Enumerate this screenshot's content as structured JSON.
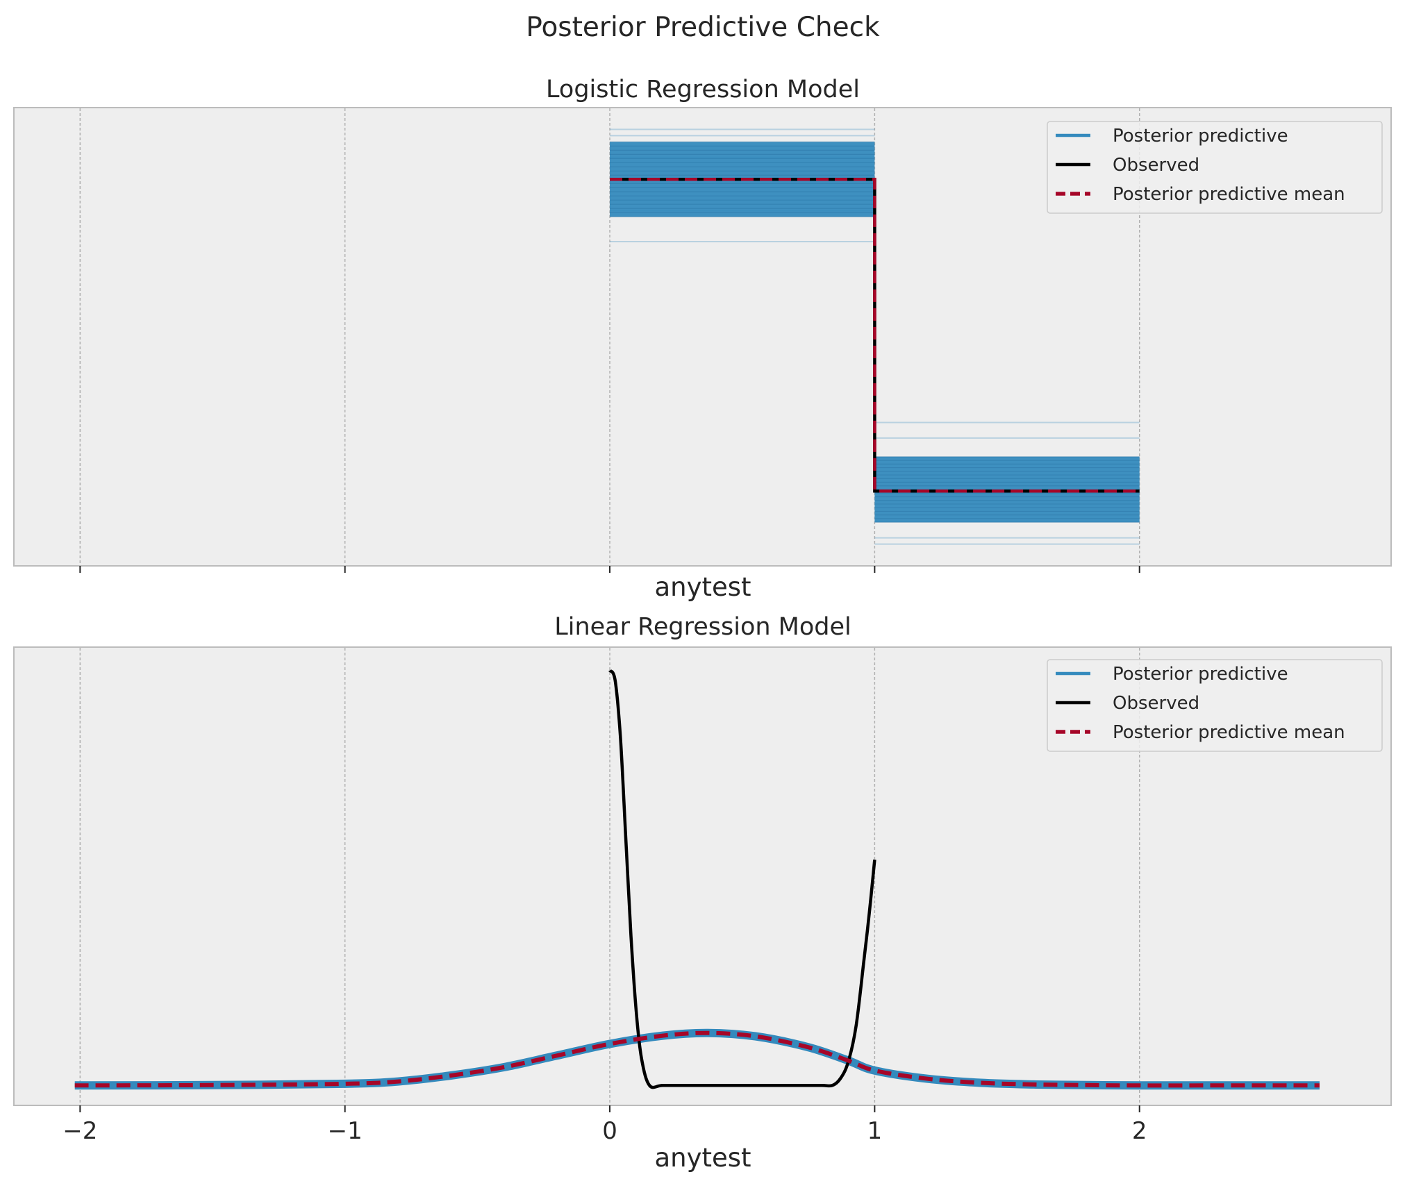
{
  "figure": {
    "title": "Posterior Predictive Check"
  },
  "chart_data": [
    {
      "type": "line",
      "title": "Logistic Regression Model",
      "xlabel": "anytest",
      "ylabel": "",
      "xlim": [
        -2.25,
        2.95
      ],
      "ylim": [
        0.0,
        1.47
      ],
      "x_ticks": [
        -2,
        -1,
        0,
        1,
        2
      ],
      "x_tick_labels": [],
      "y_ticks": [],
      "grid": "x-dashed",
      "legend_position": "upper right",
      "legend": [
        "Posterior predictive",
        "Observed",
        "Posterior predictive mean"
      ],
      "colors": {
        "posterior_predictive": "#348abd",
        "observed": "#000000",
        "posterior_predictive_mean": "#a60628",
        "panel_bg": "#eeeeee",
        "panel_edge": "#bcbcbc",
        "grid": "#b0b0b0"
      },
      "observed": {
        "x": [
          0,
          1,
          1,
          2
        ],
        "y": [
          1.24,
          1.24,
          0.24,
          0.24
        ]
      },
      "posterior_predictive_mean": {
        "x": [
          0,
          1,
          1,
          2
        ],
        "y": [
          1.24,
          1.24,
          0.24,
          0.24
        ]
      },
      "posterior_predictive_band": {
        "first_bin": {
          "x": [
            0,
            1
          ],
          "core_low": 1.12,
          "core_high": 1.36,
          "outliers": [
            1.04,
            1.14,
            1.31,
            1.38,
            1.4
          ]
        },
        "second_bin": {
          "x": [
            1,
            2
          ],
          "core_low": 0.14,
          "core_high": 0.35,
          "outliers": [
            0.07,
            0.09,
            0.41,
            0.46
          ]
        }
      }
    },
    {
      "type": "line",
      "title": "Linear Regression Model",
      "xlabel": "anytest",
      "ylabel": "",
      "xlim": [
        -2.25,
        2.95
      ],
      "ylim": [
        -0.06,
        1.32
      ],
      "x_ticks": [
        -2,
        -1,
        0,
        1,
        2
      ],
      "x_tick_labels": [
        "−2",
        "−1",
        "0",
        "1",
        "2"
      ],
      "y_ticks": [],
      "grid": "x-dashed",
      "legend_position": "upper right",
      "legend": [
        "Posterior predictive",
        "Observed",
        "Posterior predictive mean"
      ],
      "observed_kde": {
        "x": [
          0,
          0.02,
          0.04,
          0.06,
          0.08,
          0.1,
          0.12,
          0.15,
          0.2,
          0.3,
          0.5,
          0.7,
          0.8,
          0.84,
          0.87,
          0.9,
          0.93,
          0.96,
          0.98,
          1.0
        ],
        "y": [
          1.25,
          1.22,
          1.05,
          0.75,
          0.45,
          0.22,
          0.08,
          0.0,
          0.0,
          0.0,
          0.0,
          0.0,
          0.0,
          0.0,
          0.02,
          0.07,
          0.18,
          0.38,
          0.52,
          0.68
        ]
      },
      "posterior_predictive_kde": {
        "x": [
          -2.02,
          -1.5,
          -1.0,
          -0.8,
          -0.6,
          -0.4,
          -0.2,
          0.0,
          0.2,
          0.37,
          0.55,
          0.75,
          0.9,
          1.0,
          1.2,
          1.4,
          1.6,
          1.8,
          2.0,
          2.3,
          2.68
        ],
        "y": [
          0.0,
          0.001,
          0.005,
          0.012,
          0.03,
          0.055,
          0.09,
          0.125,
          0.15,
          0.158,
          0.148,
          0.115,
          0.075,
          0.045,
          0.02,
          0.008,
          0.003,
          0.001,
          0.0,
          0.0,
          0.0
        ]
      },
      "posterior_predictive_mean": {
        "x": [
          -2.02,
          -1.5,
          -1.0,
          -0.8,
          -0.6,
          -0.4,
          -0.2,
          0.0,
          0.2,
          0.37,
          0.55,
          0.75,
          0.9,
          1.0,
          1.2,
          1.4,
          1.6,
          1.8,
          2.0,
          2.3,
          2.68
        ],
        "y": [
          0.0,
          0.001,
          0.005,
          0.012,
          0.03,
          0.055,
          0.09,
          0.125,
          0.15,
          0.158,
          0.148,
          0.115,
          0.075,
          0.045,
          0.02,
          0.008,
          0.003,
          0.001,
          0.0,
          0.0,
          0.0
        ]
      }
    }
  ]
}
